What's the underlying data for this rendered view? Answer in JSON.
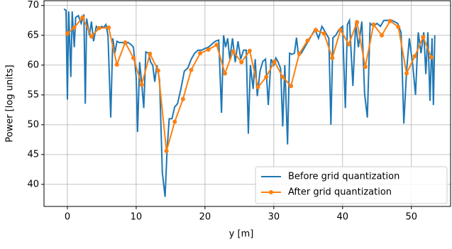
{
  "chart_data": {
    "type": "line",
    "xlabel": "y [m]",
    "ylabel": "Power [log units]",
    "xlim": [
      -3.4,
      55.8
    ],
    "ylim": [
      36.3,
      70.8
    ],
    "xticks": [
      0,
      10,
      20,
      30,
      40,
      50
    ],
    "yticks": [
      40,
      45,
      50,
      55,
      60,
      65,
      70
    ],
    "grid": true,
    "legend": "lower right",
    "series": [
      {
        "name": "Before grid quantization",
        "color": "#1f77b4",
        "markers": false,
        "x": [
          -0.5,
          -0.2,
          0,
          0.2,
          0.5,
          0.7,
          1,
          1.2,
          1.6,
          2,
          2.4,
          2.6,
          2.8,
          3.2,
          3.5,
          3.8,
          4.2,
          4.6,
          5,
          5.3,
          5.6,
          5.9,
          6.3,
          6.6,
          6.9,
          7.2,
          7.5,
          8,
          8.4,
          8.8,
          9.2,
          9.6,
          10,
          10.2,
          10.5,
          10.8,
          11.1,
          11.4,
          11.8,
          12.1,
          12.4,
          12.7,
          13,
          13.4,
          13.8,
          14.2,
          14.5,
          14.8,
          15.2,
          15.6,
          16,
          16.5,
          17,
          17.5,
          18,
          18.5,
          19,
          19.5,
          20,
          20.5,
          21,
          21.5,
          22,
          22.4,
          22.7,
          23,
          23.3,
          23.6,
          24,
          24.4,
          24.8,
          25.2,
          25.6,
          26,
          26.3,
          26.6,
          27,
          27.3,
          27.6,
          28,
          28.4,
          28.8,
          29.2,
          29.6,
          30,
          30.3,
          30.6,
          31,
          31.3,
          31.6,
          32,
          32.3,
          32.6,
          33,
          33.3,
          33.6,
          34,
          34.5,
          35,
          35.5,
          36,
          36.5,
          37,
          37.5,
          38,
          38.3,
          38.6,
          39,
          39.5,
          40,
          40.4,
          40.7,
          41,
          41.5,
          41.9,
          42.3,
          42.8,
          43.2,
          43.6,
          44,
          44.5,
          45,
          45.5,
          46,
          46.5,
          47,
          47.5,
          48,
          48.5,
          48.9,
          49.3,
          49.7,
          50.2,
          50.6,
          51,
          51.4,
          51.8,
          52.1,
          52.4,
          52.7,
          53,
          53.2,
          53.4
        ],
        "values": [
          69.4,
          69.2,
          54.2,
          69,
          58,
          69,
          63,
          68,
          68.3,
          67,
          68.5,
          53.5,
          67.8,
          65,
          67.3,
          64,
          66.5,
          66,
          66.5,
          66.3,
          66.8,
          65,
          51.2,
          64.5,
          62,
          64,
          63.8,
          63.8,
          63.5,
          63.8,
          63.5,
          63,
          58,
          48.8,
          60.5,
          57,
          52.8,
          62.2,
          62,
          60.5,
          60,
          57.2,
          60,
          57.5,
          42,
          37.9,
          46,
          51,
          51,
          53,
          53.5,
          56,
          59,
          59.5,
          61,
          62,
          62.5,
          62.5,
          62.8,
          63,
          63.5,
          64,
          64.2,
          52,
          65,
          63,
          64.5,
          61,
          64.5,
          60.5,
          64,
          61,
          62.5,
          62.5,
          48.5,
          60,
          56,
          61,
          54.8,
          59,
          60.6,
          61,
          53.3,
          61,
          60,
          61.2,
          60.6,
          59.4,
          49.7,
          60,
          46.7,
          62,
          61.8,
          62,
          64.6,
          61.5,
          62,
          63,
          64,
          65,
          66,
          64.5,
          66.5,
          65.5,
          64.5,
          50,
          64.6,
          65,
          66,
          66.5,
          52.8,
          66.8,
          67.5,
          56.5,
          67,
          63,
          67.3,
          55.2,
          51.2,
          67,
          66.5,
          67,
          66.5,
          67.5,
          67.5,
          67.6,
          67.3,
          67,
          65.5,
          50.2,
          59,
          64.5,
          60,
          55,
          65.5,
          62,
          65.5,
          58.5,
          65.5,
          54,
          64.5,
          53.3,
          65
        ]
      },
      {
        "name": "After grid quantization",
        "color": "#ff7f0e",
        "markers": true,
        "x": [
          0,
          1,
          2.2,
          3.5,
          4.6,
          6,
          7.2,
          8.4,
          9.6,
          10.8,
          12,
          13.2,
          14.4,
          15.6,
          16.8,
          18,
          19.3,
          20.5,
          21.7,
          22.9,
          24.1,
          25.3,
          26.5,
          27.7,
          28.9,
          30.1,
          31.3,
          32.5,
          33.7,
          34.9,
          36.1,
          37.3,
          38.5,
          39.7,
          40.9,
          42.1,
          43.3,
          44.5,
          45.7,
          46.9,
          48.1,
          49.3,
          50.5,
          51.7,
          52.9
        ],
        "values": [
          65.3,
          66.3,
          68,
          64.8,
          66.2,
          66.3,
          60.1,
          63.8,
          61.2,
          56.7,
          61.9,
          59.1,
          45.6,
          50.5,
          54.3,
          59.2,
          62,
          62.6,
          63.4,
          58.6,
          62.3,
          60.5,
          62.4,
          56.3,
          58,
          60.6,
          58,
          56.5,
          61.9,
          64.1,
          65.9,
          65.3,
          61.2,
          65.9,
          63.5,
          67.2,
          59.7,
          66.8,
          65,
          67.4,
          66.4,
          58.6,
          61.5,
          64.7,
          61.3
        ]
      }
    ]
  }
}
